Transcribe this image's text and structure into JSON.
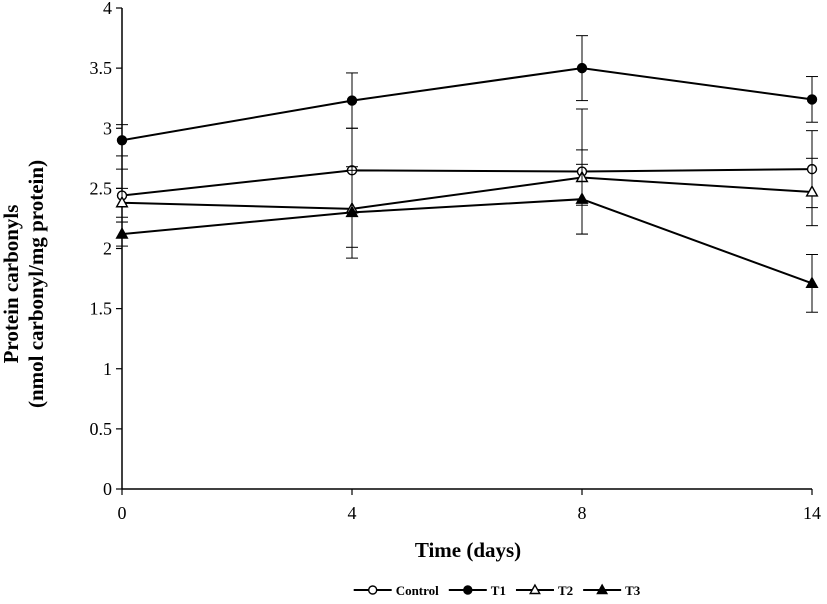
{
  "chart_data": {
    "type": "line",
    "xlabel": "Time (days)",
    "ylabel_line1": "Protein carbonyls",
    "ylabel_line2": "(nmol carbonyl/mg protein)",
    "x_categories": [
      "0",
      "4",
      "8",
      "14"
    ],
    "ylim": [
      0,
      4
    ],
    "y_ticks": [
      0,
      0.5,
      1,
      1.5,
      2,
      2.5,
      3,
      3.5,
      4
    ],
    "y_tick_labels": [
      "0",
      "0.5",
      "1",
      "1.5",
      "2",
      "2.5",
      "3",
      "3.5",
      "4"
    ],
    "grid": false,
    "legend_position": "bottom",
    "series": [
      {
        "name": "Control",
        "marker": "circle-open",
        "color": "#000000",
        "values": [
          2.44,
          2.65,
          2.64,
          2.66
        ],
        "errors": [
          0.22,
          0.35,
          0.52,
          0.32
        ]
      },
      {
        "name": "T1",
        "marker": "circle-filled",
        "color": "#000000",
        "values": [
          2.9,
          3.23,
          3.5,
          3.24
        ],
        "errors": [
          0.13,
          0.23,
          0.27,
          0.19
        ]
      },
      {
        "name": "T2",
        "marker": "triangle-open",
        "color": "#000000",
        "values": [
          2.38,
          2.33,
          2.59,
          2.47
        ],
        "errors": [
          0.12,
          0.32,
          0.23,
          0.28
        ]
      },
      {
        "name": "T3",
        "marker": "triangle-filled",
        "color": "#000000",
        "values": [
          2.12,
          2.3,
          2.41,
          1.71
        ],
        "errors": [
          0.1,
          0.38,
          0.29,
          0.24
        ]
      }
    ]
  }
}
